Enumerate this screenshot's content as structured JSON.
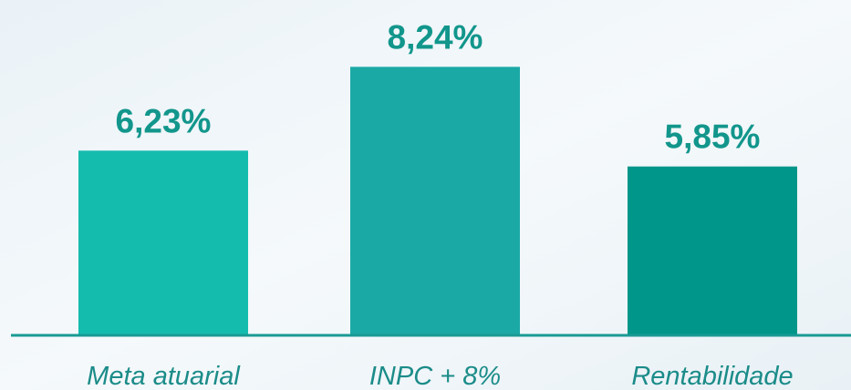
{
  "chart_data": {
    "type": "bar",
    "categories": [
      "Meta atuarial",
      "INPC + 8%",
      "Rentabilidade"
    ],
    "values": [
      6.23,
      8.24,
      5.85
    ],
    "value_labels": [
      "6,23%",
      "8,24%",
      "5,85%"
    ],
    "colors": [
      "#14bcae",
      "#1ba9a6",
      "#00968a"
    ],
    "ylim": [
      1.8,
      9.1
    ]
  }
}
